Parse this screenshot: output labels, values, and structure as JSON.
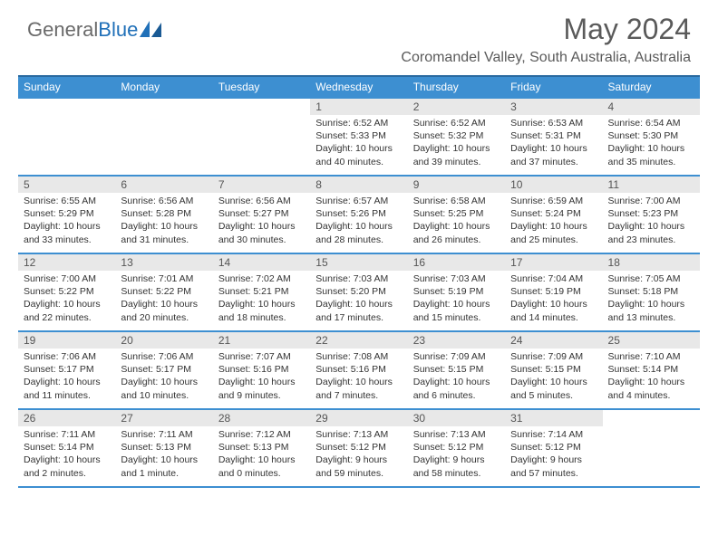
{
  "logo": {
    "text1": "General",
    "text2": "Blue"
  },
  "title": "May 2024",
  "location": "Coromandel Valley, South Australia, Australia",
  "colors": {
    "header_bg": "#3d8fd1",
    "header_border": "#2a6aa0",
    "row_border": "#3d8fd1",
    "daynum_bg": "#e8e8e8",
    "logo_gray": "#6a6a6a",
    "logo_blue": "#2070b8",
    "text": "#333333",
    "title_color": "#5a5a5a"
  },
  "weekdays": [
    "Sunday",
    "Monday",
    "Tuesday",
    "Wednesday",
    "Thursday",
    "Friday",
    "Saturday"
  ],
  "layout": {
    "first_weekday_index": 3,
    "days_in_month": 31
  },
  "days": {
    "1": {
      "sunrise": "6:52 AM",
      "sunset": "5:33 PM",
      "daylight": "10 hours and 40 minutes."
    },
    "2": {
      "sunrise": "6:52 AM",
      "sunset": "5:32 PM",
      "daylight": "10 hours and 39 minutes."
    },
    "3": {
      "sunrise": "6:53 AM",
      "sunset": "5:31 PM",
      "daylight": "10 hours and 37 minutes."
    },
    "4": {
      "sunrise": "6:54 AM",
      "sunset": "5:30 PM",
      "daylight": "10 hours and 35 minutes."
    },
    "5": {
      "sunrise": "6:55 AM",
      "sunset": "5:29 PM",
      "daylight": "10 hours and 33 minutes."
    },
    "6": {
      "sunrise": "6:56 AM",
      "sunset": "5:28 PM",
      "daylight": "10 hours and 31 minutes."
    },
    "7": {
      "sunrise": "6:56 AM",
      "sunset": "5:27 PM",
      "daylight": "10 hours and 30 minutes."
    },
    "8": {
      "sunrise": "6:57 AM",
      "sunset": "5:26 PM",
      "daylight": "10 hours and 28 minutes."
    },
    "9": {
      "sunrise": "6:58 AM",
      "sunset": "5:25 PM",
      "daylight": "10 hours and 26 minutes."
    },
    "10": {
      "sunrise": "6:59 AM",
      "sunset": "5:24 PM",
      "daylight": "10 hours and 25 minutes."
    },
    "11": {
      "sunrise": "7:00 AM",
      "sunset": "5:23 PM",
      "daylight": "10 hours and 23 minutes."
    },
    "12": {
      "sunrise": "7:00 AM",
      "sunset": "5:22 PM",
      "daylight": "10 hours and 22 minutes."
    },
    "13": {
      "sunrise": "7:01 AM",
      "sunset": "5:22 PM",
      "daylight": "10 hours and 20 minutes."
    },
    "14": {
      "sunrise": "7:02 AM",
      "sunset": "5:21 PM",
      "daylight": "10 hours and 18 minutes."
    },
    "15": {
      "sunrise": "7:03 AM",
      "sunset": "5:20 PM",
      "daylight": "10 hours and 17 minutes."
    },
    "16": {
      "sunrise": "7:03 AM",
      "sunset": "5:19 PM",
      "daylight": "10 hours and 15 minutes."
    },
    "17": {
      "sunrise": "7:04 AM",
      "sunset": "5:19 PM",
      "daylight": "10 hours and 14 minutes."
    },
    "18": {
      "sunrise": "7:05 AM",
      "sunset": "5:18 PM",
      "daylight": "10 hours and 13 minutes."
    },
    "19": {
      "sunrise": "7:06 AM",
      "sunset": "5:17 PM",
      "daylight": "10 hours and 11 minutes."
    },
    "20": {
      "sunrise": "7:06 AM",
      "sunset": "5:17 PM",
      "daylight": "10 hours and 10 minutes."
    },
    "21": {
      "sunrise": "7:07 AM",
      "sunset": "5:16 PM",
      "daylight": "10 hours and 9 minutes."
    },
    "22": {
      "sunrise": "7:08 AM",
      "sunset": "5:16 PM",
      "daylight": "10 hours and 7 minutes."
    },
    "23": {
      "sunrise": "7:09 AM",
      "sunset": "5:15 PM",
      "daylight": "10 hours and 6 minutes."
    },
    "24": {
      "sunrise": "7:09 AM",
      "sunset": "5:15 PM",
      "daylight": "10 hours and 5 minutes."
    },
    "25": {
      "sunrise": "7:10 AM",
      "sunset": "5:14 PM",
      "daylight": "10 hours and 4 minutes."
    },
    "26": {
      "sunrise": "7:11 AM",
      "sunset": "5:14 PM",
      "daylight": "10 hours and 2 minutes."
    },
    "27": {
      "sunrise": "7:11 AM",
      "sunset": "5:13 PM",
      "daylight": "10 hours and 1 minute."
    },
    "28": {
      "sunrise": "7:12 AM",
      "sunset": "5:13 PM",
      "daylight": "10 hours and 0 minutes."
    },
    "29": {
      "sunrise": "7:13 AM",
      "sunset": "5:12 PM",
      "daylight": "9 hours and 59 minutes."
    },
    "30": {
      "sunrise": "7:13 AM",
      "sunset": "5:12 PM",
      "daylight": "9 hours and 58 minutes."
    },
    "31": {
      "sunrise": "7:14 AM",
      "sunset": "5:12 PM",
      "daylight": "9 hours and 57 minutes."
    }
  }
}
